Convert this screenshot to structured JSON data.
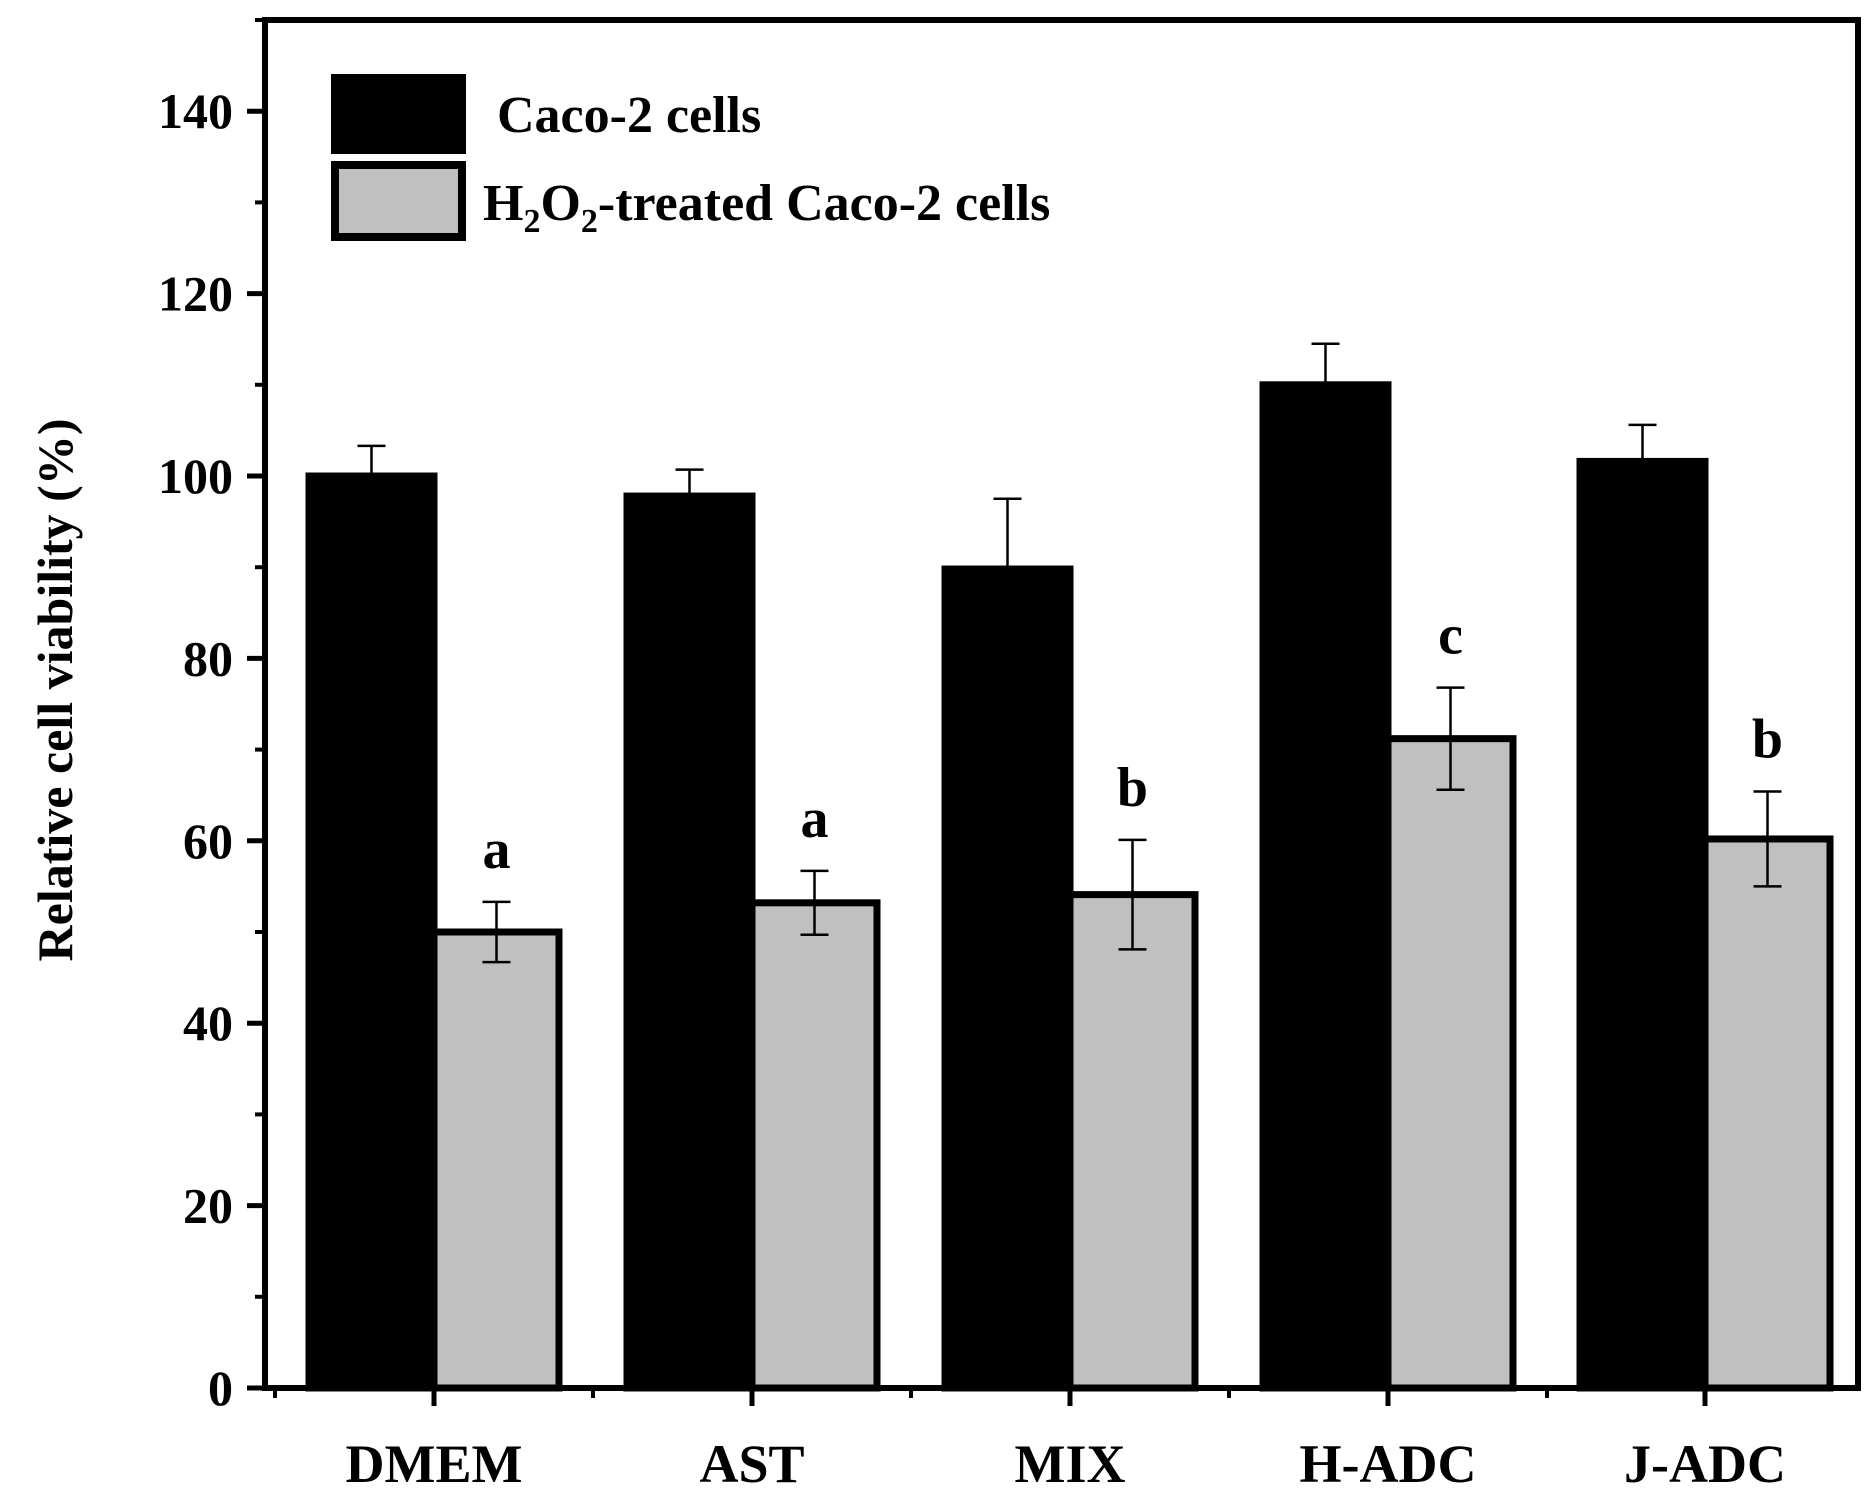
{
  "chart_data": {
    "type": "bar",
    "categories": [
      "DMEM",
      "AST",
      "MIX",
      "H-ADC",
      "J-ADC"
    ],
    "series": [
      {
        "name": "Caco-2 cells",
        "values": [
          100.0,
          97.8,
          89.8,
          110.0,
          101.6
        ],
        "errors": [
          3.3,
          2.9,
          7.7,
          4.5,
          4.0
        ],
        "color": "#000000"
      },
      {
        "name": "H2O2-treated Caco-2 cells",
        "legend_parts": {
          "pre1": "H",
          "sub1": "2",
          "mid": "O",
          "sub2": "2",
          "post": "-treated Caco-2 cells"
        },
        "values": [
          50.0,
          53.2,
          54.1,
          71.2,
          60.2
        ],
        "errors": [
          3.3,
          3.5,
          6.0,
          5.6,
          5.2
        ],
        "color": "#c0c0c0",
        "annotations": [
          "a",
          "a",
          "b",
          "c",
          "b"
        ]
      }
    ],
    "ylabel": "Relative cell viability (%)",
    "xlabel": "",
    "ylim": [
      0,
      150
    ],
    "yticks": [
      0,
      20,
      40,
      60,
      80,
      100,
      120,
      140
    ],
    "ytick_labels": [
      "0",
      "20",
      "40",
      "60",
      "80",
      "100",
      "120",
      "140"
    ],
    "grid": false,
    "legend_position": "top-left"
  }
}
